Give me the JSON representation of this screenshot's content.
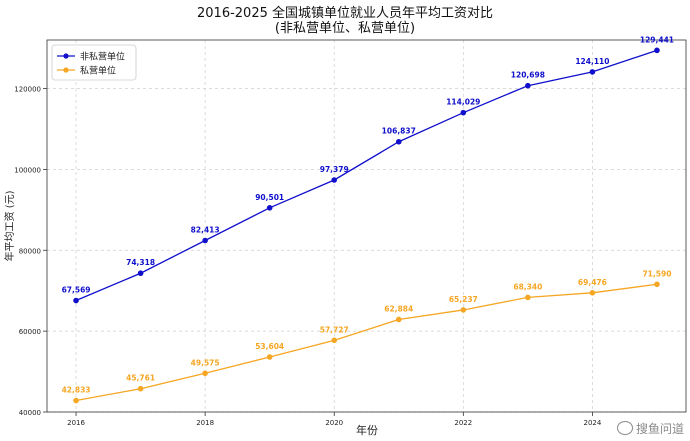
{
  "chart_data": {
    "type": "line",
    "title": "2016-2025 全国城镇单位就业人员年平均工资对比",
    "subtitle": "(非私营单位、私营单位)",
    "xlabel": "年份",
    "ylabel": "年平均工资 (元)",
    "x": [
      2016,
      2017,
      2018,
      2019,
      2020,
      2021,
      2022,
      2023,
      2024,
      2025
    ],
    "x_tick_labels": [
      "2016",
      "2018",
      "2020",
      "2022",
      "2024"
    ],
    "y_tick_labels": [
      "40000",
      "60000",
      "80000",
      "100000",
      "120000"
    ],
    "xlim": [
      2015.55,
      2025.45
    ],
    "ylim": [
      40000,
      132000
    ],
    "grid": true,
    "legend_position": "top-left",
    "series": [
      {
        "name": "非私营单位",
        "color": "#1010cc",
        "values": [
          67569,
          74318,
          82413,
          90501,
          97379,
          106837,
          114029,
          120698,
          124110,
          129441
        ],
        "labels": [
          "67,569",
          "74,318",
          "82,413",
          "90,501",
          "97,379",
          "106,837",
          "114,029",
          "120,698",
          "124,110",
          "129,441"
        ]
      },
      {
        "name": "私营单位",
        "color": "#f5a623",
        "values": [
          42833,
          45761,
          49575,
          53604,
          57727,
          62884,
          65237,
          68340,
          69476,
          71590
        ],
        "labels": [
          "42,833",
          "45,761",
          "49,575",
          "53,604",
          "57,727",
          "62,884",
          "65,237",
          "68,340",
          "69,476",
          "71,590"
        ]
      }
    ]
  },
  "watermark": "搜鱼问道"
}
